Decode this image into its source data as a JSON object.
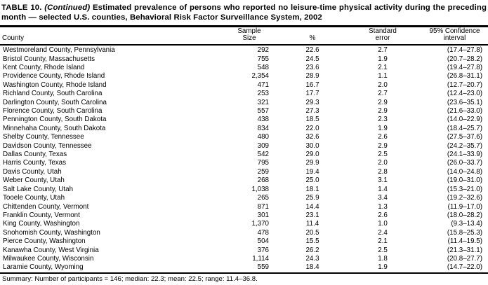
{
  "page": {
    "title": {
      "prefix": "TABLE 10.",
      "continued": "(Continued)",
      "line1_rest": "Estimated prevalence of persons who reported no leisure-time physical activity during the preceding",
      "line2": "month — selected U.S. counties, Behavioral Risk Factor Surveillance System, 2002"
    },
    "header": {
      "county": "County",
      "sample_size_line1": "Sample",
      "sample_size_line2": "Size",
      "percent": "%",
      "standard_error_line1": "Standard",
      "standard_error_line2": "error",
      "confidence_line1": "95% Confidence",
      "confidence_line2": "interval"
    },
    "rows": [
      {
        "county": "Westmoreland County, Pennsylvania",
        "sample_size": "292",
        "percent": "22.6",
        "standard_error": "2.7",
        "confidence_interval": "(17.4–27.8)"
      },
      {
        "county": "Bristol County, Massachusetts",
        "sample_size": "755",
        "percent": "24.5",
        "standard_error": "1.9",
        "confidence_interval": "(20.7–28.2)"
      },
      {
        "county": "Kent County, Rhode Island",
        "sample_size": "548",
        "percent": "23.6",
        "standard_error": "2.1",
        "confidence_interval": "(19.4–27.8)"
      },
      {
        "county": "Providence County, Rhode Island",
        "sample_size": "2,354",
        "percent": "28.9",
        "standard_error": "1.1",
        "confidence_interval": "(26.8–31.1)"
      },
      {
        "county": "Washington County, Rhode Island",
        "sample_size": "471",
        "percent": "16.7",
        "standard_error": "2.0",
        "confidence_interval": "(12.7–20.7)"
      },
      {
        "county": "Richland County, South Carolina",
        "sample_size": "253",
        "percent": "17.7",
        "standard_error": "2.7",
        "confidence_interval": "(12.4–23.0)"
      },
      {
        "county": "Darlington County, South Carolina",
        "sample_size": "321",
        "percent": "29.3",
        "standard_error": "2.9",
        "confidence_interval": "(23.6–35.1)"
      },
      {
        "county": "Florence County, South Carolina",
        "sample_size": "557",
        "percent": "27.3",
        "standard_error": "2.9",
        "confidence_interval": "(21.6–33.0)"
      },
      {
        "county": "Pennington County, South Dakota",
        "sample_size": "438",
        "percent": "18.5",
        "standard_error": "2.3",
        "confidence_interval": "(14.0–22.9)"
      },
      {
        "county": "Minnehaha County, South Dakota",
        "sample_size": "834",
        "percent": "22.0",
        "standard_error": "1.9",
        "confidence_interval": "(18.4–25.7)"
      },
      {
        "county": "Shelby County, Tennessee",
        "sample_size": "480",
        "percent": "32.6",
        "standard_error": "2.6",
        "confidence_interval": "(27.5–37.6)"
      },
      {
        "county": "Davidson County, Tennessee",
        "sample_size": "309",
        "percent": "30.0",
        "standard_error": "2.9",
        "confidence_interval": "(24.2–35.7)"
      },
      {
        "county": "Dallas County, Texas",
        "sample_size": "542",
        "percent": "29.0",
        "standard_error": "2.5",
        "confidence_interval": "(24.1–33.9)"
      },
      {
        "county": "Harris County, Texas",
        "sample_size": "795",
        "percent": "29.9",
        "standard_error": "2.0",
        "confidence_interval": "(26.0–33.7)"
      },
      {
        "county": "Davis County, Utah",
        "sample_size": "259",
        "percent": "19.4",
        "standard_error": "2.8",
        "confidence_interval": "(14.0–24.8)"
      },
      {
        "county": "Weber County, Utah",
        "sample_size": "268",
        "percent": "25.0",
        "standard_error": "3.1",
        "confidence_interval": "(19.0–31.0)"
      },
      {
        "county": "Salt Lake County, Utah",
        "sample_size": "1,038",
        "percent": "18.1",
        "standard_error": "1.4",
        "confidence_interval": "(15.3–21.0)"
      },
      {
        "county": "Tooele County, Utah",
        "sample_size": "265",
        "percent": "25.9",
        "standard_error": "3.4",
        "confidence_interval": "(19.2–32.6)"
      },
      {
        "county": "Chittenden County, Vermont",
        "sample_size": "871",
        "percent": "14.4",
        "standard_error": "1.3",
        "confidence_interval": "(11.9–17.0)"
      },
      {
        "county": "Franklin County, Vermont",
        "sample_size": "301",
        "percent": "23.1",
        "standard_error": "2.6",
        "confidence_interval": "(18.0–28.2)"
      },
      {
        "county": "King County, Washington",
        "sample_size": "1,370",
        "percent": "11.4",
        "standard_error": "1.0",
        "confidence_interval": "(9.3–13.4)"
      },
      {
        "county": "Snohomish County, Washington",
        "sample_size": "478",
        "percent": "20.5",
        "standard_error": "2.4",
        "confidence_interval": "(15.8–25.3)"
      },
      {
        "county": "Pierce County, Washington",
        "sample_size": "504",
        "percent": "15.5",
        "standard_error": "2.1",
        "confidence_interval": "(11.4–19.5)"
      },
      {
        "county": "Kanawha County, West Virginia",
        "sample_size": "376",
        "percent": "26.2",
        "standard_error": "2.5",
        "confidence_interval": "(21.3–31.1)"
      },
      {
        "county": "Milwaukee County, Wisconsin",
        "sample_size": "1,114",
        "percent": "24.3",
        "standard_error": "1.8",
        "confidence_interval": "(20.8–27.7)"
      },
      {
        "county": "Laramie County, Wyoming",
        "sample_size": "559",
        "percent": "18.4",
        "standard_error": "1.9",
        "confidence_interval": "(14.7–22.0)"
      }
    ],
    "summary": "Summary: Number of participants = 146; median: 22.3; mean: 22.5; range: 11.4–36.8."
  }
}
